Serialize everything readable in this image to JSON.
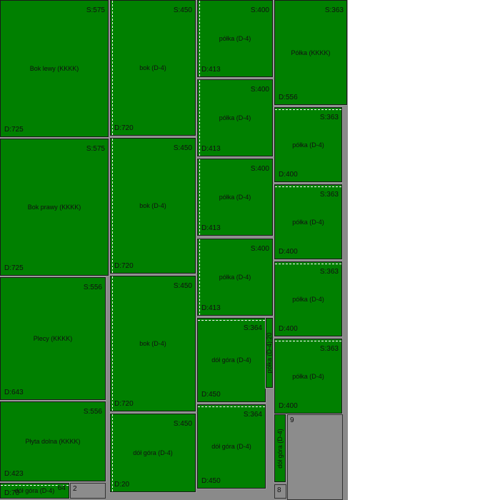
{
  "pieces": [
    {
      "label": "Bok lewy (KKKK)",
      "s": "S:575",
      "d": "D:725"
    },
    {
      "label": "Bok prawy (KKKK)",
      "s": "S:575",
      "d": "D:725"
    },
    {
      "label": "Plecy (KKKK)",
      "s": "S:556",
      "d": "D:643"
    },
    {
      "label": "Płyta dolna (KKKK)",
      "s": "S:556",
      "d": "D:423"
    },
    {
      "label": "dół góra  (D-4)",
      "s": "64",
      "d": "D:70"
    },
    {
      "label": "bok (D-4)",
      "s": "S:450",
      "d": "D:720"
    },
    {
      "label": "bok (D-4)",
      "s": "S:450",
      "d": "D:720"
    },
    {
      "label": "bok (D-4)",
      "s": "S:450",
      "d": "D:720"
    },
    {
      "label": "dół góra  (D-4)",
      "s": "S:450",
      "d": "D:20"
    },
    {
      "label": "półka  (D-4)",
      "s": "S:400",
      "d": "D:413"
    },
    {
      "label": "półka  (D-4)",
      "s": "S:400",
      "d": "D:413"
    },
    {
      "label": "półka  (D-4)",
      "s": "S:400",
      "d": "D:413"
    },
    {
      "label": "półka  (D-4)",
      "s": "S:400",
      "d": "D:413"
    },
    {
      "label": "dół góra  (D-4)",
      "s": "S:364",
      "d": "D:450"
    },
    {
      "label": "dół góra  (D-4)",
      "s": "S:364",
      "d": "D:450"
    },
    {
      "label": "Półka (KKKK)",
      "s": "S:363",
      "d": "D:556"
    },
    {
      "label": "półka  (D-4)",
      "s": "S:363",
      "d": "D:400"
    },
    {
      "label": "półka  (D-4)",
      "s": "S:363",
      "d": "D:400"
    },
    {
      "label": "półka  (D-4)",
      "s": "S:363",
      "d": "D:400"
    },
    {
      "label": "półka  (D-4)",
      "s": "S:363",
      "d": "D:400"
    },
    {
      "label": "półka  (D-4):20"
    },
    {
      "label": "dół góra  (D-4)"
    }
  ],
  "offcuts": [
    {
      "label": "2"
    },
    {
      "label": "9"
    },
    {
      "label": "8"
    }
  ]
}
